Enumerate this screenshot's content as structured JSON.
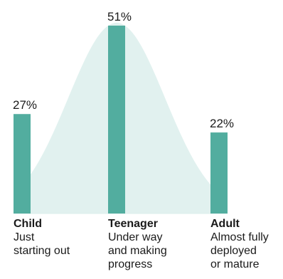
{
  "chart_data": {
    "type": "bar",
    "categories": [
      "Child",
      "Teenager",
      "Adult"
    ],
    "descriptions": [
      "Just\nstarting out",
      "Under way\nand making\nprogress",
      "Almost fully\ndeployed\nor mature"
    ],
    "values": [
      27,
      51,
      22
    ],
    "value_labels": [
      "27%",
      "51%",
      "22%"
    ],
    "ylim": [
      0,
      51
    ],
    "bar_color": "#52ad9f",
    "curve_color": "#e1f1ef",
    "baseline_color": "#dcefec"
  }
}
